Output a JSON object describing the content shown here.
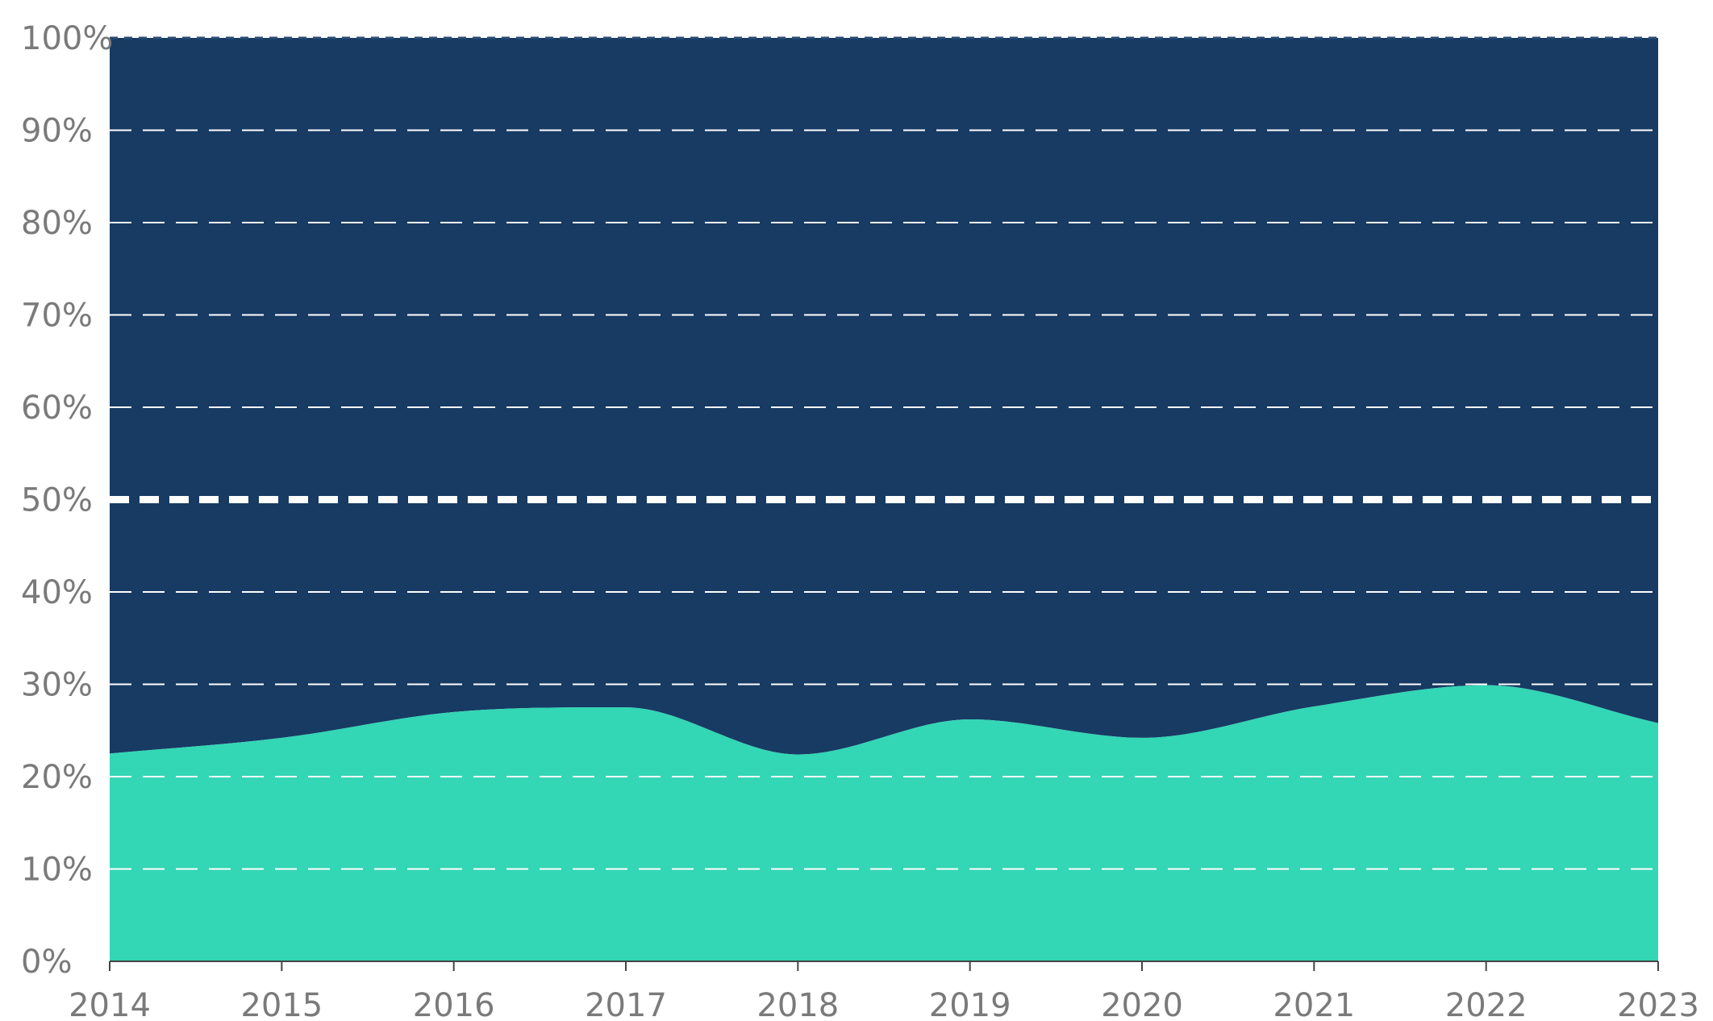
{
  "chart_data": {
    "type": "area",
    "stacked": true,
    "percent_stacked": true,
    "title": "",
    "xlabel": "",
    "ylabel": "",
    "x": [
      2014,
      2015,
      2016,
      2017,
      2018,
      2019,
      2020,
      2021,
      2022,
      2023
    ],
    "x_tick_labels": [
      "2014",
      "2015",
      "2016",
      "2017",
      "2018",
      "2019",
      "2020",
      "2021",
      "2022",
      "2023"
    ],
    "y_tick_labels": [
      "0%",
      "10%",
      "20%",
      "30%",
      "40%",
      "50%",
      "60%",
      "70%",
      "80%",
      "90%",
      "100%"
    ],
    "ylim": [
      0,
      100
    ],
    "grid": true,
    "highlight_line_y": 50,
    "legend": "none",
    "series": [
      {
        "color": "#33d6b5",
        "values": [
          22.5,
          24.2,
          27.0,
          27.5,
          22.4,
          26.2,
          24.2,
          27.6,
          29.9,
          25.8
        ]
      },
      {
        "color": "#173b63",
        "values": [
          77.5,
          75.8,
          73.0,
          72.5,
          77.6,
          73.8,
          75.8,
          72.4,
          70.1,
          74.2
        ]
      }
    ],
    "colors": {
      "grid": "#ffffff",
      "tick_text": "#7a7a7a",
      "axis": "#444444"
    }
  }
}
